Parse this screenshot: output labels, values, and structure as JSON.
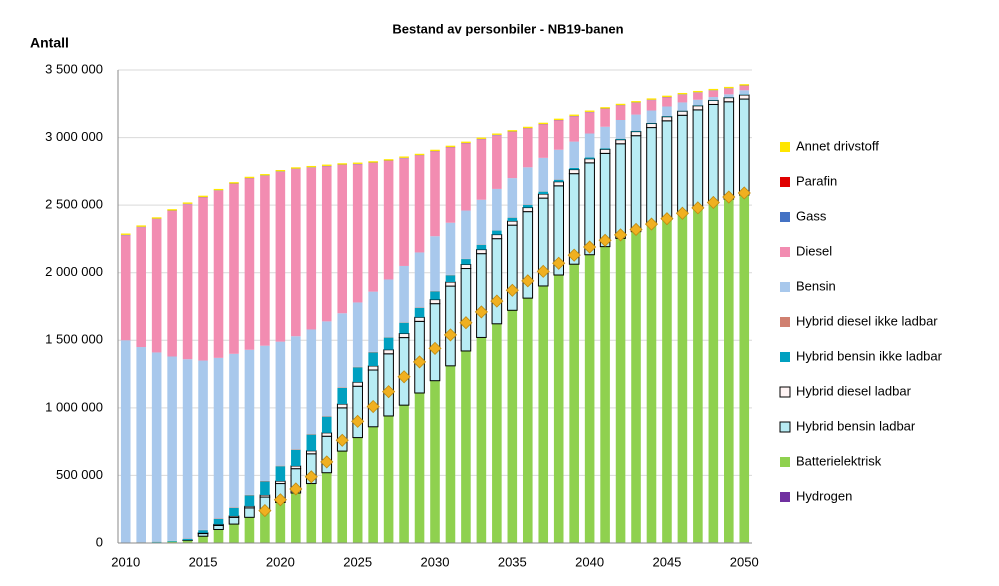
{
  "chart_data": {
    "type": "stacked-bar",
    "title": "Bestand av personbiler - NB19-banen",
    "y_label": "Antall",
    "categories": [
      "2010",
      null,
      null,
      null,
      null,
      "2015",
      null,
      null,
      null,
      null,
      "2020",
      null,
      null,
      null,
      null,
      "2025",
      null,
      null,
      null,
      null,
      "2030",
      null,
      null,
      null,
      null,
      "2035",
      null,
      null,
      null,
      null,
      "2040",
      null,
      null,
      null,
      null,
      "2045",
      null,
      null,
      null,
      null,
      "2050"
    ],
    "ylim": [
      0,
      3500000
    ],
    "yticks": [
      {
        "value": 0,
        "label": "0"
      },
      {
        "value": 500000,
        "label": "500 000"
      },
      {
        "value": 1000000,
        "label": "1 000 000"
      },
      {
        "value": 1500000,
        "label": "1 500 000"
      },
      {
        "value": 2000000,
        "label": "2 000 000"
      },
      {
        "value": 2500000,
        "label": "2 500 000"
      },
      {
        "value": 3000000,
        "label": "3 000 000"
      },
      {
        "value": 3500000,
        "label": "3 500 000"
      }
    ],
    "grid": true,
    "legend": "right",
    "series": [
      {
        "name": "Annet drivstoff",
        "color": "#ffe600",
        "values": [
          10000,
          10000,
          10000,
          10000,
          10000,
          10000,
          10000,
          10000,
          10000,
          10000,
          10000,
          10000,
          10000,
          10000,
          10000,
          10000,
          10000,
          10000,
          10000,
          10000,
          10000,
          10000,
          10000,
          10000,
          10000,
          10000,
          10000,
          10000,
          10000,
          10000,
          10000,
          10000,
          10000,
          10000,
          10000,
          10000,
          10000,
          10000,
          10000,
          10000,
          10000
        ]
      },
      {
        "name": "Parafin",
        "color": "#e00000",
        "values": [
          1000,
          1000,
          1000,
          1000,
          1000,
          1000,
          1000,
          1000,
          1000,
          1000,
          1000,
          1000,
          1000,
          1000,
          1000,
          1000,
          1000,
          1000,
          1000,
          1000,
          1000,
          1000,
          1000,
          1000,
          1000,
          1000,
          1000,
          1000,
          1000,
          1000,
          1000,
          1000,
          1000,
          1000,
          1000,
          1000,
          1000,
          1000,
          1000,
          1000,
          1000
        ]
      },
      {
        "name": "Gass",
        "color": "#4472c4",
        "values": [
          2000,
          2000,
          2000,
          2000,
          2000,
          2000,
          2000,
          2000,
          2000,
          2000,
          2000,
          2000,
          2000,
          2000,
          2000,
          2000,
          2000,
          2000,
          2000,
          2000,
          2000,
          2000,
          2000,
          2000,
          2000,
          2000,
          2000,
          2000,
          2000,
          2000,
          2000,
          2000,
          2000,
          2000,
          2000,
          2000,
          2000,
          2000,
          2000,
          2000,
          2000
        ]
      },
      {
        "name": "Diesel",
        "color": "#f28cb1",
        "values": [
          777000,
          887000,
          987000,
          1077000,
          1147000,
          1207000,
          1237000,
          1257000,
          1267000,
          1257000,
          1257000,
          1237000,
          1197000,
          1147000,
          1097000,
          1022000,
          952000,
          877000,
          797000,
          717000,
          627000,
          557000,
          497000,
          447000,
          397000,
          342000,
          287000,
          247000,
          217000,
          187000,
          157000,
          132000,
          107000,
          87000,
          77000,
          67000,
          57000,
          52000,
          47000,
          42000,
          32000
        ]
      },
      {
        "name": "Bensin",
        "color": "#a8c8ec",
        "values": [
          1497000,
          1444000,
          1400000,
          1364000,
          1327000,
          1253000,
          1189000,
          1137000,
          1074000,
          1001000,
          918000,
          836000,
          774000,
          701000,
          548000,
          476000,
          446000,
          427000,
          417000,
          407000,
          406000,
          386000,
          357000,
          332000,
          306000,
          291000,
          276000,
          248000,
          220000,
          194000,
          176000,
          158000,
          138000,
          119000,
          90000,
          70000,
          60000,
          40000,
          21000,
          21000,
          31000
        ]
      },
      {
        "name": "Hybrid diesel ikke ladbar",
        "color": "#d08070",
        "values": [
          1000,
          1000,
          1000,
          1000,
          2000,
          2000,
          3000,
          3000,
          4000,
          4000,
          4000,
          4000,
          4000,
          4000,
          4000,
          4000,
          4000,
          3000,
          3000,
          3000,
          3000,
          3000,
          2000,
          2000,
          2000,
          2000,
          2000,
          2000,
          2000,
          1000,
          1000,
          1000,
          1000,
          1000,
          1000,
          1000,
          1000,
          1000,
          1000,
          1000,
          1000
        ]
      },
      {
        "name": "Hybrid bensin ikke ladbar",
        "color": "#00a0c0",
        "values": [
          2000,
          3000,
          4000,
          5000,
          10000,
          20000,
          40000,
          60000,
          80000,
          100000,
          110000,
          120000,
          120000,
          120000,
          120000,
          110000,
          100000,
          90000,
          80000,
          70000,
          60000,
          50000,
          40000,
          35000,
          30000,
          25000,
          20000,
          18000,
          15000,
          12000,
          10000,
          8000,
          7000,
          6000,
          5000,
          5000,
          4000,
          4000,
          3000,
          3000,
          3000
        ]
      },
      {
        "name": "Hybrid diesel ladbar",
        "color": "#fff4f4",
        "outline": "#000000",
        "values": [
          0,
          0,
          0,
          0,
          0,
          5000,
          8000,
          10000,
          12000,
          15000,
          18000,
          20000,
          22000,
          25000,
          28000,
          30000,
          30000,
          30000,
          30000,
          30000,
          30000,
          30000,
          30000,
          30000,
          30000,
          30000,
          30000,
          30000,
          30000,
          30000,
          30000,
          30000,
          30000,
          30000,
          30000,
          30000,
          30000,
          30000,
          30000,
          30000,
          30000
        ]
      },
      {
        "name": "Hybrid bensin ladbar",
        "color": "#b8ecf4",
        "outline": "#000000",
        "values": [
          0,
          0,
          0,
          0,
          1000,
          20000,
          30000,
          50000,
          70000,
          100000,
          140000,
          180000,
          220000,
          270000,
          320000,
          380000,
          420000,
          460000,
          500000,
          530000,
          570000,
          590000,
          610000,
          620000,
          630000,
          630000,
          640000,
          650000,
          660000,
          670000,
          680000,
          690000,
          700000,
          710000,
          720000,
          730000,
          730000,
          730000,
          730000,
          720000,
          710000
        ]
      },
      {
        "name": "Batterielektrisk",
        "color": "#8fd14f",
        "values": [
          0,
          2000,
          5000,
          10000,
          20000,
          50000,
          100000,
          140000,
          190000,
          240000,
          300000,
          370000,
          440000,
          520000,
          680000,
          780000,
          860000,
          940000,
          1020000,
          1110000,
          1200000,
          1310000,
          1420000,
          1520000,
          1620000,
          1720000,
          1810000,
          1900000,
          1980000,
          2060000,
          2130000,
          2190000,
          2250000,
          2300000,
          2350000,
          2390000,
          2430000,
          2470000,
          2510000,
          2540000,
          2570000
        ]
      },
      {
        "name": "Hydrogen",
        "color": "#7030a0",
        "values": [
          0,
          0,
          0,
          0,
          0,
          0,
          0,
          0,
          0,
          0,
          0,
          0,
          0,
          0,
          0,
          0,
          0,
          0,
          0,
          0,
          1000,
          1000,
          1000,
          1000,
          2000,
          2000,
          2000,
          2000,
          3000,
          3000,
          3000,
          3000,
          4000,
          4000,
          4000,
          4000,
          5000,
          5000,
          5000,
          5000,
          5000
        ]
      }
    ],
    "marker_series": {
      "color": "#f0b020",
      "values": [
        null,
        null,
        null,
        null,
        null,
        null,
        null,
        null,
        null,
        240000,
        320000,
        400000,
        490000,
        600000,
        760000,
        900000,
        1010000,
        1120000,
        1230000,
        1340000,
        1440000,
        1540000,
        1630000,
        1710000,
        1790000,
        1870000,
        1940000,
        2010000,
        2070000,
        2130000,
        2190000,
        2240000,
        2280000,
        2320000,
        2360000,
        2400000,
        2440000,
        2480000,
        2520000,
        2560000,
        2590000
      ]
    }
  }
}
